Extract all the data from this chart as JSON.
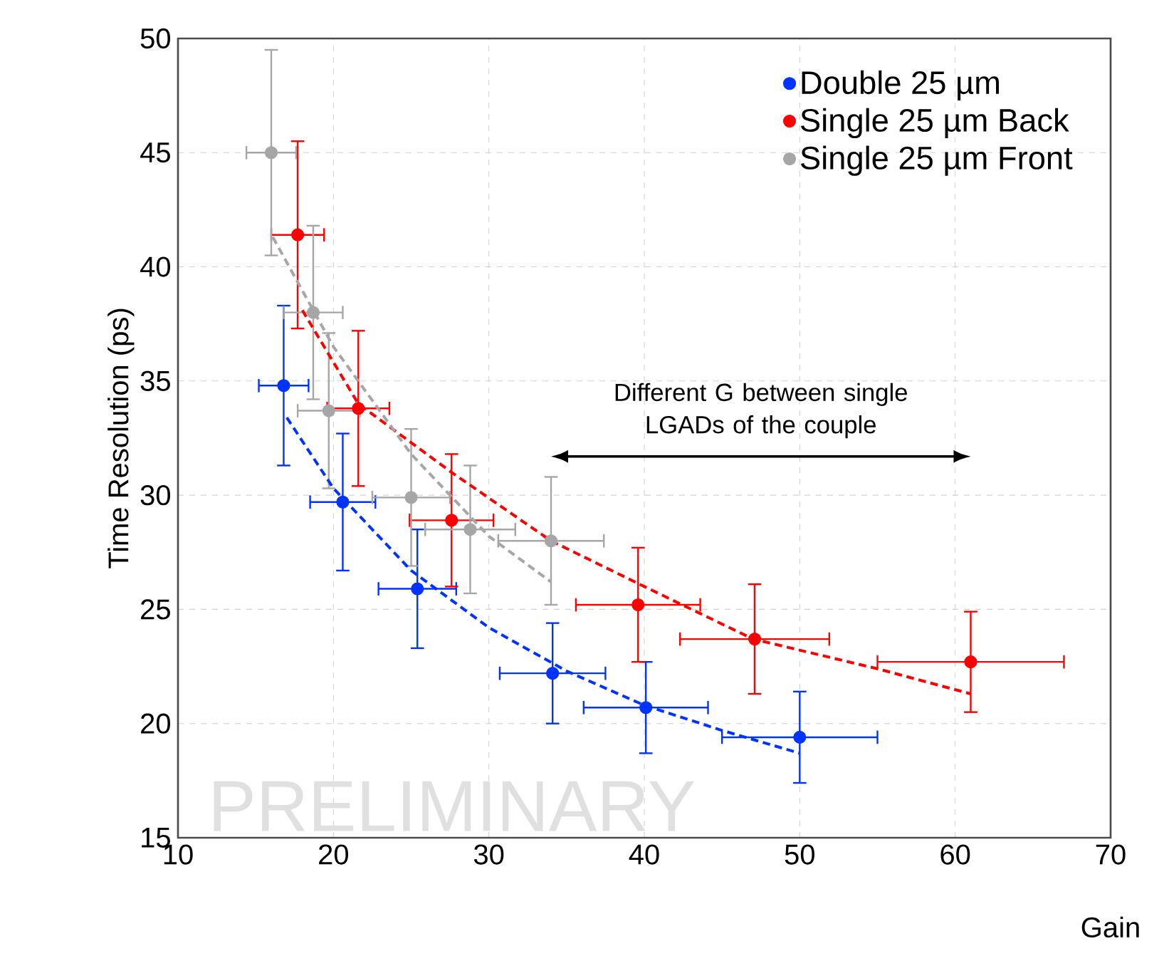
{
  "chart_data": {
    "type": "scatter",
    "xlabel": "Gain",
    "ylabel": "Time Resolution (ps)",
    "xlim": [
      10,
      70
    ],
    "xticks": [
      10,
      20,
      30,
      40,
      50,
      60,
      70
    ],
    "ylim": [
      15,
      50
    ],
    "yticks": [
      15,
      20,
      25,
      30,
      35,
      40,
      45,
      50
    ],
    "grid": true,
    "legend": "top right",
    "marker": "circle",
    "series": [
      {
        "name": "Double 25 µm",
        "color": "#0033ff",
        "x": [
          16.8,
          20.6,
          25.4,
          34.1,
          40.1,
          50
        ],
        "values": [
          34.8,
          29.7,
          25.9,
          22.2,
          20.7,
          19.4
        ],
        "errors": [
          3.5,
          3,
          2.6,
          2.2,
          2,
          2
        ],
        "xerrors": [
          1.6,
          2.1,
          2.5,
          3.4,
          4,
          5
        ]
      },
      {
        "name": "Single 25 µm Back",
        "color": "#ff0000",
        "x": [
          17.7,
          21.6,
          27.6,
          39.6,
          47.1,
          61
        ],
        "values": [
          41.4,
          33.8,
          28.9,
          25.2,
          23.7,
          22.7
        ],
        "errors": [
          4.1,
          3.4,
          2.9,
          2.5,
          2.4,
          2.2
        ],
        "xerrors": [
          1.7,
          2,
          2.7,
          4,
          4.8,
          6
        ]
      },
      {
        "name": "Single 25 µm Front",
        "color": "#a6a6a6",
        "x": [
          16,
          18.7,
          19.7,
          25,
          28.8,
          34
        ],
        "values": [
          45,
          38,
          33.7,
          29.9,
          28.5,
          28
        ],
        "errors": [
          4.5,
          3.8,
          3.4,
          3,
          2.8,
          2.8
        ],
        "xerrors": [
          1.6,
          1.9,
          2,
          2.5,
          2.9,
          3.4
        ]
      },
      {
        "type": "line",
        "line_style": "dashed",
        "marker": "none",
        "color": "#0033ff",
        "x": [
          17,
          20,
          25,
          30,
          35,
          40,
          45,
          50
        ],
        "values": [
          33.4,
          30.3,
          26.7,
          24.2,
          22.3,
          20.8,
          19.7,
          18.7
        ]
      },
      {
        "type": "line",
        "line_style": "dashed",
        "marker": "none",
        "color": "#ff0000",
        "x": [
          18,
          21.6,
          27.6,
          34,
          40,
          47,
          55,
          61
        ],
        "values": [
          38.1,
          34,
          31,
          28,
          26,
          23.7,
          22.4,
          21.3
        ]
      },
      {
        "type": "line",
        "line_style": "dashed",
        "marker": "none",
        "color": "#a6a6a6",
        "x": [
          16.1,
          20,
          25,
          30,
          34
        ],
        "values": [
          41.3,
          36.5,
          31.8,
          28.2,
          26.2
        ]
      }
    ],
    "annotations": [
      "Different G between single LGADs of the couple",
      "PRELIMINARY"
    ]
  }
}
